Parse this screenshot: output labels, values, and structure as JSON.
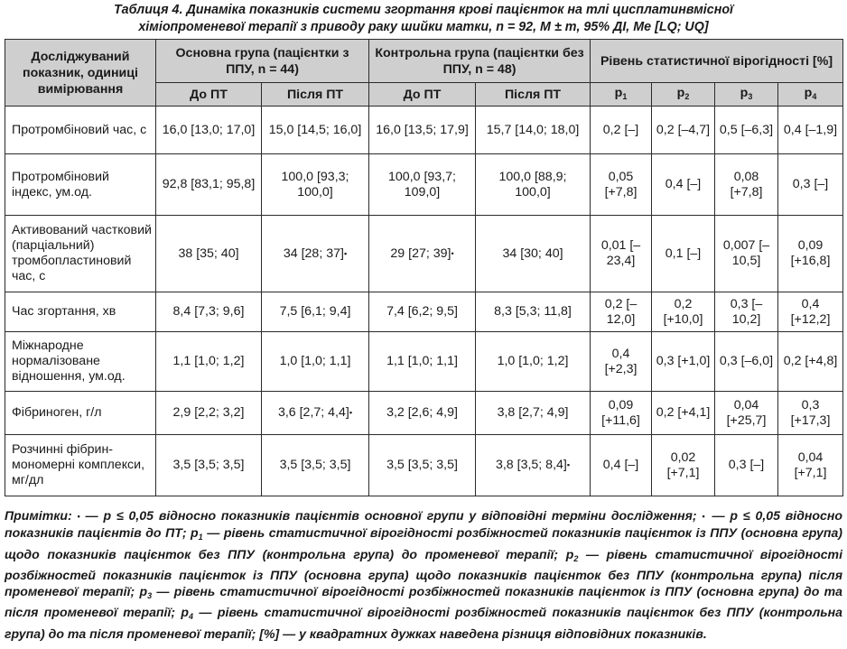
{
  "caption": {
    "line1": "Таблиця 4. Динаміка показників системи згортання крові пацієнток на тлі цисплатинвмісної",
    "line2": "хіміопроменевої терапії з приводу раку шийки матки, n = 92, M ± m, 95% ДІ, Me [LQ; UQ]"
  },
  "header": {
    "parameter": "Досліджуваний показник, одиниці вимірювання",
    "group_main": "Основна група (пацієнтки з ППУ, n = 44)",
    "group_control": "Контрольна група (пацієнтки без ППУ, n = 48)",
    "significance": "Рівень статистичної вірогідності [%]",
    "before": "До ПТ",
    "after": "Після ПТ",
    "p1": "p",
    "p1_sub": "1",
    "p2": "p",
    "p2_sub": "2",
    "p3": "p",
    "p3_sub": "3",
    "p4": "p",
    "p4_sub": "4"
  },
  "rows": [
    {
      "param": "Протромбіновий час, с",
      "m_before": "16,0 [13,0; 17,0]",
      "m_after": "15,0 [14,5; 16,0]",
      "c_before": "16,0 [13,5; 17,9]",
      "c_after": "15,7 [14,0; 18,0]",
      "p1": "0,2 [–]",
      "p2": "0,2 [–4,7]",
      "p3": "0,5 [–6,3]",
      "p4": "0,4 [–1,9]"
    },
    {
      "param": "Протромбіновий індекс, ум.од.",
      "m_before": "92,8 [83,1; 95,8]",
      "m_after": "100,0 [93,3; 100,0]",
      "c_before": "100,0 [93,7; 109,0]",
      "c_after": "100,0 [88,9; 100,0]",
      "p1": "0,05 [+7,8]",
      "p2": "0,4 [–]",
      "p3": "0,08 [+7,8]",
      "p4": "0,3 [–]"
    },
    {
      "param": "Активований частковий (парціальний) тромбопластиновий час, с",
      "m_before": "38 [35; 40]",
      "m_after": "34 [28; 37]",
      "m_after_mark": "▪",
      "c_before": "29 [27; 39]",
      "c_before_mark": "•",
      "c_after": "34 [30; 40]",
      "p1": "0,01 [–23,4]",
      "p2": "0,1 [–]",
      "p3": "0,007 [–10,5]",
      "p4": "0,09 [+16,8]"
    },
    {
      "param": "Час згортання, хв",
      "m_before": "8,4 [7,3; 9,6]",
      "m_after": "7,5 [6,1; 9,4]",
      "c_before": "7,4 [6,2; 9,5]",
      "c_after": "8,3 [5,3; 11,8]",
      "p1": "0,2 [–12,0]",
      "p2": "0,2 [+10,0]",
      "p3": "0,3 [–10,2]",
      "p4": "0,4 [+12,2]"
    },
    {
      "param": "Міжнародне нормалізоване відношення, ум.од.",
      "m_before": "1,1 [1,0; 1,2]",
      "m_after": "1,0 [1,0; 1,1]",
      "c_before": "1,1 [1,0; 1,1]",
      "c_after": "1,0 [1,0; 1,2]",
      "p1": "0,4 [+2,3]",
      "p2": "0,3 [+1,0]",
      "p3": "0,3 [–6,0]",
      "p4": "0,2 [+4,8]"
    },
    {
      "param": "Фібриноген, г/л",
      "m_before": "2,9 [2,2; 3,2]",
      "m_after": "3,6 [2,7; 4,4]",
      "m_after_mark": "▪",
      "c_before": "3,2 [2,6; 4,9]",
      "c_after": "3,8 [2,7; 4,9]",
      "p1": "0,09 [+11,6]",
      "p2": "0,2 [+4,1]",
      "p3": "0,04 [+25,7]",
      "p4": "0,3 [+17,3]"
    },
    {
      "param": "Розчинні фібрин-мономерні комплекси, мг/дл",
      "m_before": "3,5 [3,5; 3,5]",
      "m_after": "3,5 [3,5; 3,5]",
      "c_before": "3,5 [3,5; 3,5]",
      "c_after": "3,8 [3,5; 8,4]",
      "c_after_mark": "▪",
      "p1": "0,4 [–]",
      "p2": "0,02 [+7,1]",
      "p3": "0,3 [–]",
      "p4": "0,04 [+7,1]"
    }
  ],
  "notes": {
    "t1": "Примітки: ",
    "m1": "•",
    "t2": " — p ≤ 0,05 відносно показників пацієнтів основної групи у відповідні терміни дослідження; ",
    "m2": "▪",
    "t3": " — p ≤ 0,05 відносно показників пацієнтів до ПТ; p",
    "s1": "1",
    "t4": " — рівень статистичної вірогідності розбіжностей показників пацієнток із ППУ (основна група) щодо показників пацієнток без ППУ (контрольна група) до променевої терапії; p",
    "s2": "2",
    "t5": " — рівень статистичної вірогідності розбіжностей показників пацієнток із ППУ (основна група) щодо показників пацієнток без ППУ (контрольна група) після променевої терапії; p",
    "s3": "3",
    "t6": " — рівень статистичної вірогідності розбіжностей показників пацієнток із ППУ (основна група) до та після променевої терапії; p",
    "s4": "4",
    "t7": " — рівень статистичної вірогідності розбіжностей показників пацієнток без ППУ (контрольна група) до та після променевої терапії; [%] — у квадратних дужках наведена різниця відповідних показників."
  }
}
